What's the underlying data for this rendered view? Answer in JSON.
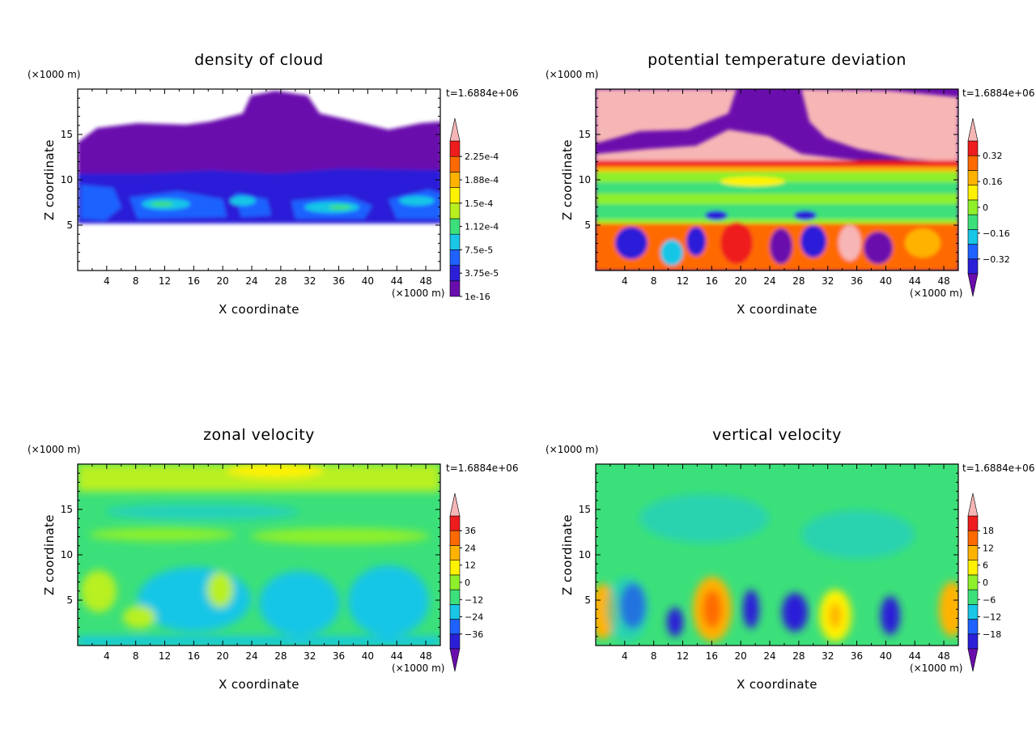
{
  "chart_data": [
    {
      "type": "heatmap",
      "title": "density of cloud",
      "xlabel": "X coordinate",
      "ylabel": "Z coordinate",
      "x_unit": "(×1000 m)",
      "y_unit": "(×1000 m)",
      "timestamp": "t=1.6884e+06",
      "xlim": [
        0,
        50
      ],
      "ylim": [
        0,
        20
      ],
      "x_ticks": [
        "4",
        "8",
        "12",
        "16",
        "20",
        "24",
        "28",
        "32",
        "36",
        "40",
        "44",
        "48"
      ],
      "y_ticks": [
        "5",
        "10",
        "15"
      ],
      "colorbar": {
        "labels": [
          "1e-16",
          "3.75e-5",
          "7.5e-5",
          "1.12e-4",
          "1.5e-4",
          "1.88e-4",
          "2.25e-4"
        ],
        "colors": [
          "#6a0dad",
          "#2b1fd8",
          "#1e62ff",
          "#19c6e6",
          "#3ce07a",
          "#b8f020",
          "#fff200",
          "#ffb300",
          "#ff6a00",
          "#ee1c1c",
          "#f7b6b6"
        ],
        "extend_low": false,
        "extend_high": true
      },
      "field_summary": {
        "cloud_layer_z": [
          5,
          16
        ],
        "dense_band_z": [
          5,
          9
        ],
        "anvil_top_z": 19.5
      }
    },
    {
      "type": "heatmap",
      "title": "potential temperature deviation",
      "xlabel": "X coordinate",
      "ylabel": "Z coordinate",
      "x_unit": "(×1000 m)",
      "y_unit": "(×1000 m)",
      "timestamp": "t=1.6884e+06",
      "xlim": [
        0,
        50
      ],
      "ylim": [
        0,
        20
      ],
      "x_ticks": [
        "4",
        "8",
        "12",
        "16",
        "20",
        "24",
        "28",
        "32",
        "36",
        "40",
        "44",
        "48"
      ],
      "y_ticks": [
        "5",
        "10",
        "15"
      ],
      "colorbar": {
        "labels": [
          "−0.32",
          "−0.16",
          "0",
          "0.16",
          "0.32"
        ],
        "colors": [
          "#6a0dad",
          "#2b1fd8",
          "#1e62ff",
          "#19c6e6",
          "#3ce07a",
          "#8ef02a",
          "#fff200",
          "#ffb300",
          "#ff6a00",
          "#ee1c1c",
          "#f7b6b6"
        ],
        "extend_low": true,
        "extend_high": true
      },
      "field_summary": {
        "upper_layer_z": [
          12,
          20
        ],
        "mid_layer_z": [
          5.5,
          12
        ],
        "lower_layer_z": [
          0,
          5.5
        ]
      }
    },
    {
      "type": "heatmap",
      "title": "zonal velocity",
      "xlabel": "X coordinate",
      "ylabel": "Z coordinate",
      "x_unit": "(×1000 m)",
      "y_unit": "(×1000 m)",
      "timestamp": "t=1.6884e+06",
      "xlim": [
        0,
        50
      ],
      "ylim": [
        0,
        20
      ],
      "x_ticks": [
        "4",
        "8",
        "12",
        "16",
        "20",
        "24",
        "28",
        "32",
        "36",
        "40",
        "44",
        "48"
      ],
      "y_ticks": [
        "5",
        "10",
        "15"
      ],
      "colorbar": {
        "labels": [
          "−36",
          "−24",
          "−12",
          "0",
          "12",
          "24",
          "36"
        ],
        "colors": [
          "#6a0dad",
          "#2b1fd8",
          "#1e62ff",
          "#19c6e6",
          "#3ce07a",
          "#8ef02a",
          "#fff200",
          "#ffb300",
          "#ff6a00",
          "#ee1c1c",
          "#f7b6b6"
        ],
        "extend_low": true,
        "extend_high": true
      }
    },
    {
      "type": "heatmap",
      "title": "vertical velocity",
      "xlabel": "X coordinate",
      "ylabel": "Z coordinate",
      "x_unit": "(×1000 m)",
      "y_unit": "(×1000 m)",
      "timestamp": "t=1.6884e+06",
      "xlim": [
        0,
        50
      ],
      "ylim": [
        0,
        20
      ],
      "x_ticks": [
        "4",
        "8",
        "12",
        "16",
        "20",
        "24",
        "28",
        "32",
        "36",
        "40",
        "44",
        "48"
      ],
      "y_ticks": [
        "5",
        "10",
        "15"
      ],
      "colorbar": {
        "labels": [
          "−18",
          "−12",
          "−6",
          "0",
          "6",
          "12",
          "18"
        ],
        "colors": [
          "#6a0dad",
          "#2b1fd8",
          "#1e62ff",
          "#19c6e6",
          "#3ce07a",
          "#8ef02a",
          "#fff200",
          "#ffb300",
          "#ff6a00",
          "#ee1c1c",
          "#f7b6b6"
        ],
        "extend_low": true,
        "extend_high": true
      },
      "field_summary": {
        "updraft_x": [
          1,
          16,
          33,
          49
        ],
        "downdraft_x": [
          5,
          10.5,
          21,
          27.5,
          40.5
        ]
      }
    }
  ]
}
